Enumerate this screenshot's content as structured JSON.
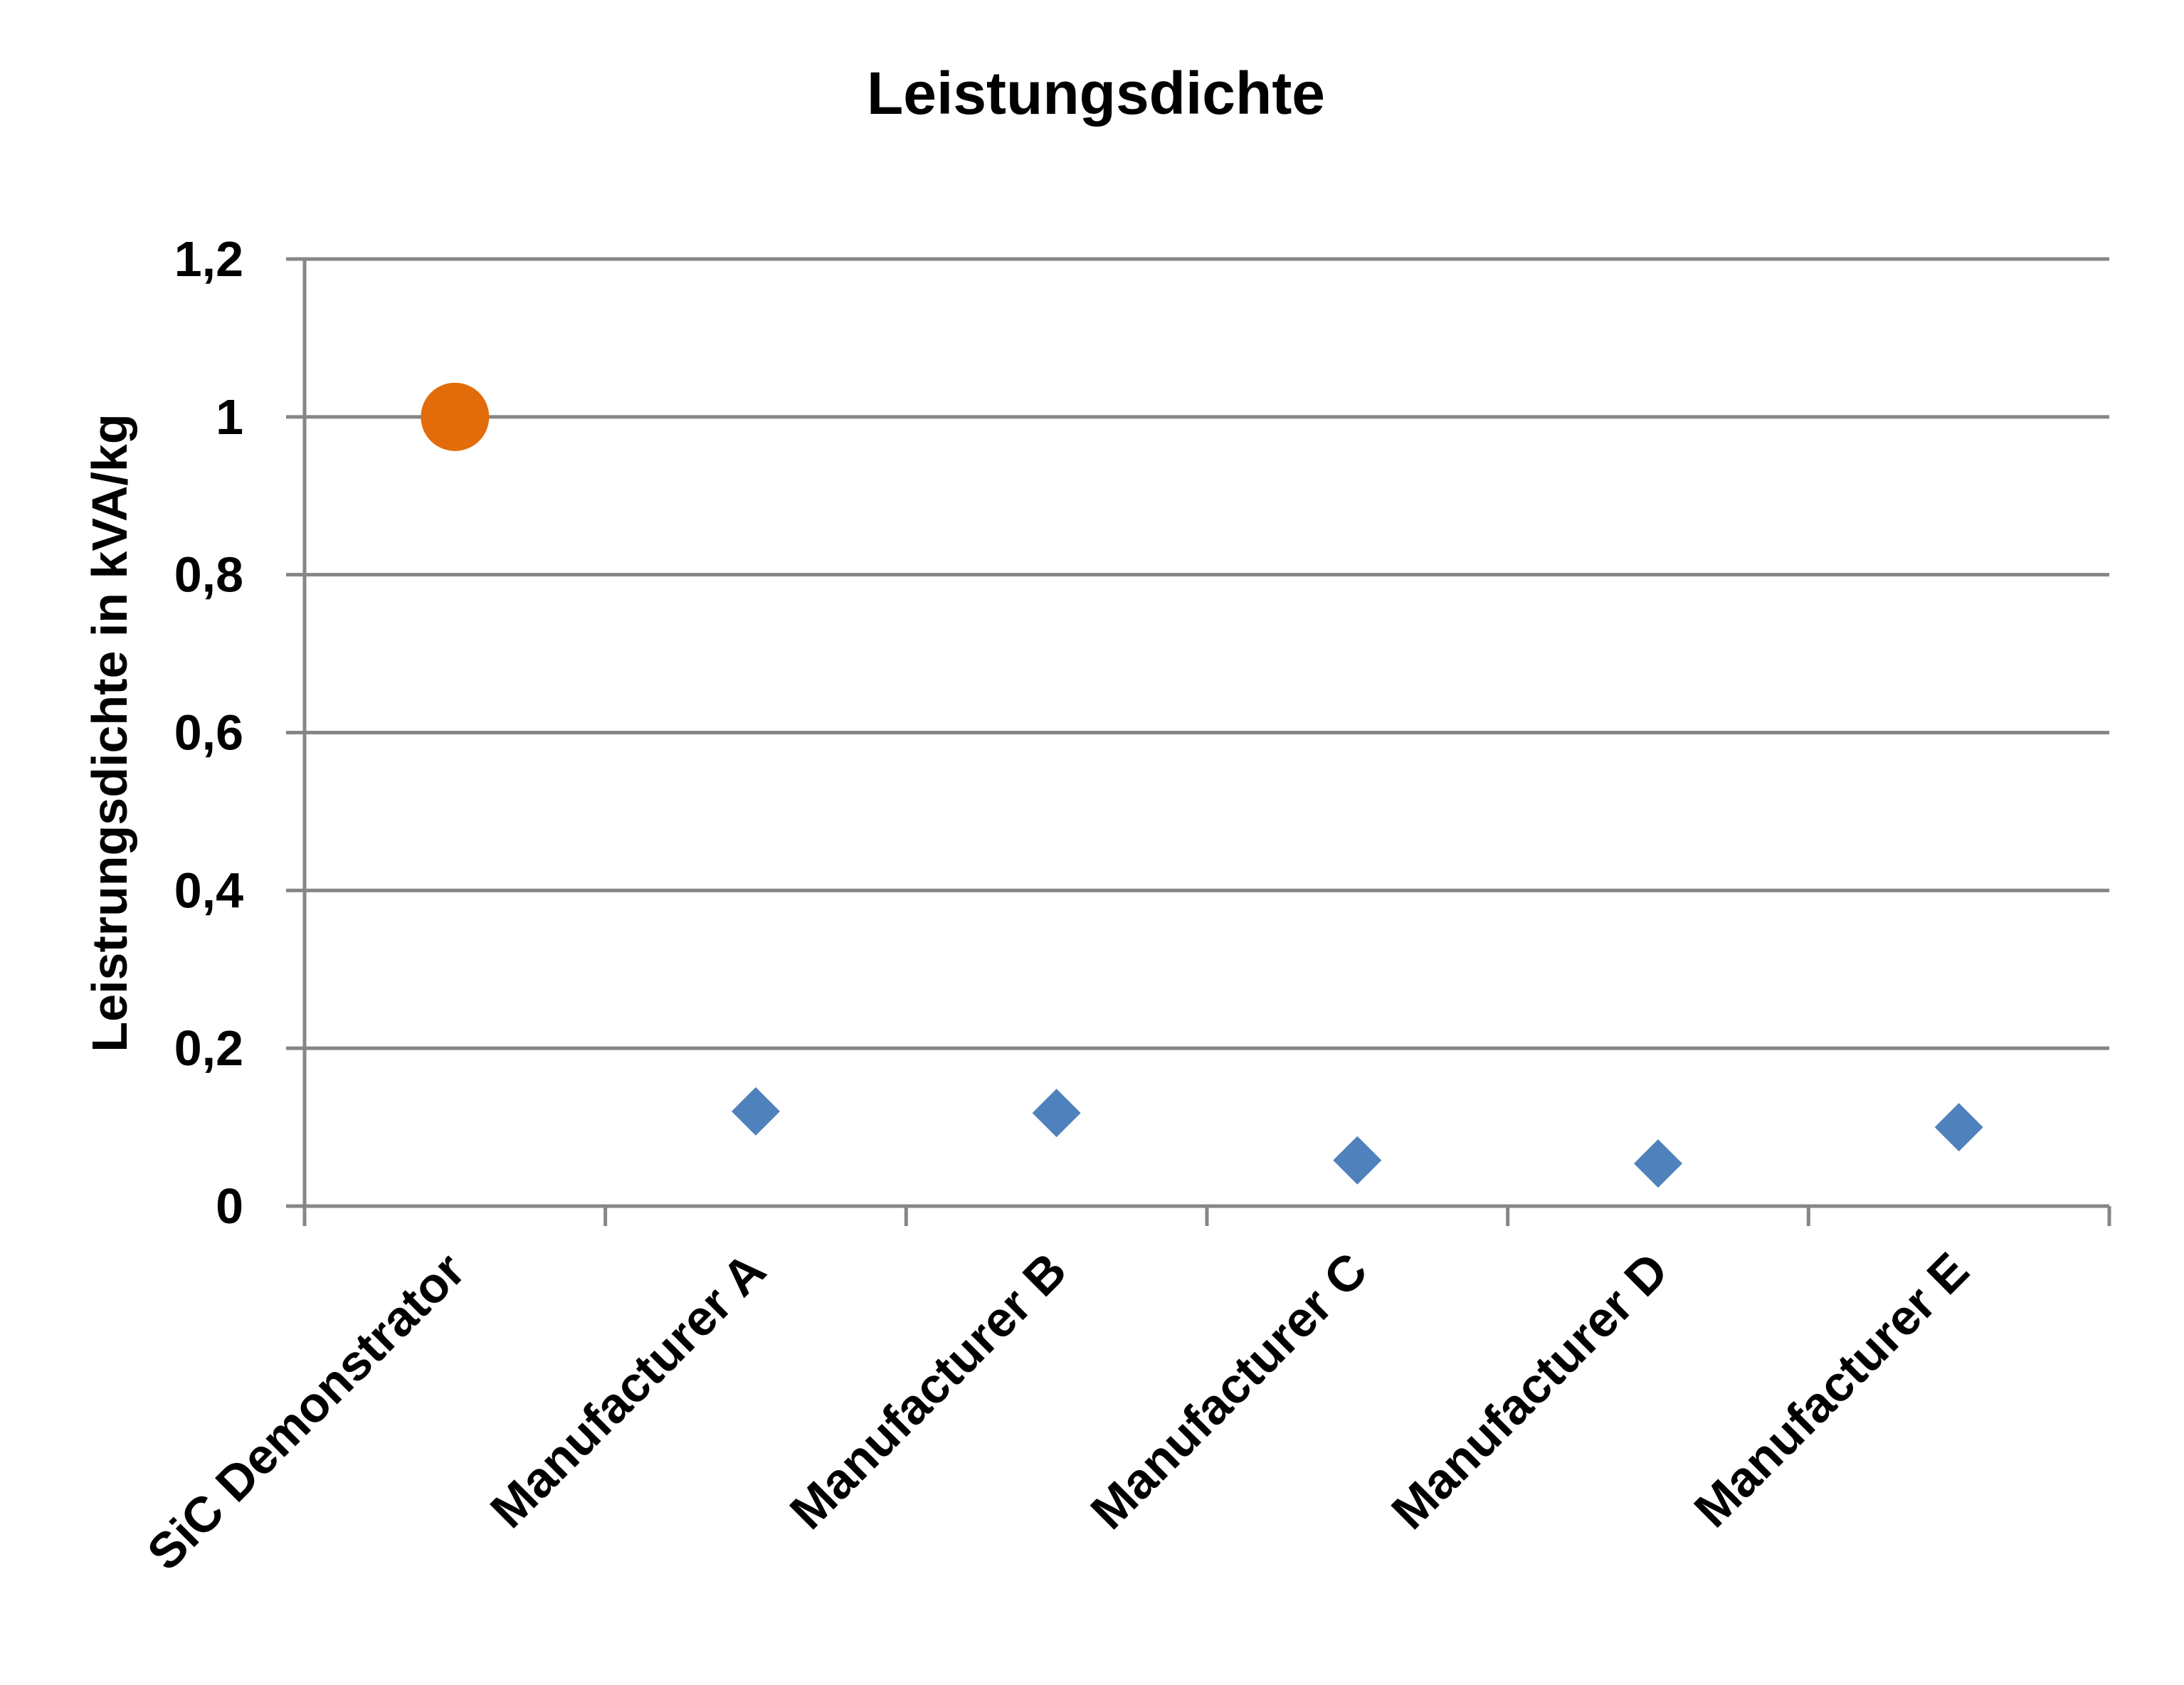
{
  "chart_data": {
    "type": "scatter",
    "title": "Leistungsdichte",
    "xlabel": "",
    "ylabel": "Leistrungsdichte in kVA/kg",
    "categories": [
      "SiC Demonstrator",
      "Manufacturer A",
      "Manufacturer B",
      "Manufacturer C",
      "Manufacturer D",
      "Manufacturer E"
    ],
    "y_ticks": [
      "0",
      "0,2",
      "0,4",
      "0,6",
      "0,8",
      "1",
      "1,2"
    ],
    "y_tick_values": [
      0,
      0.2,
      0.4,
      0.6,
      0.8,
      1.0,
      1.2
    ],
    "ylim": [
      0,
      1.2
    ],
    "grid": true,
    "legend": "none",
    "series": [
      {
        "category_index": [
          0
        ],
        "values": [
          1.0
        ],
        "marker": "circle",
        "color": "#E36C0A"
      },
      {
        "category_index": [
          1,
          2,
          3,
          4,
          5
        ],
        "values": [
          0.12,
          0.118,
          0.058,
          0.054,
          0.1
        ],
        "marker": "diamond",
        "color": "#4F81BD"
      }
    ]
  }
}
